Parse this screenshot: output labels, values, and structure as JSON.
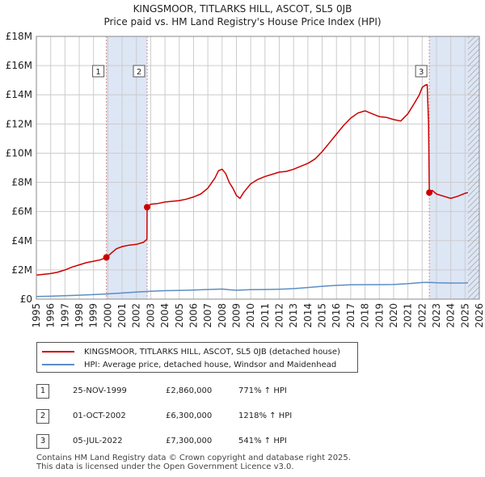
{
  "title_line1": "KINGSMOOR, TITLARKS HILL, ASCOT, SL5 0JB",
  "title_line2": "Price paid vs. HM Land Registry's House Price Index (HPI)",
  "chart_data": {
    "type": "line",
    "xlim": [
      1995,
      2026
    ],
    "ylim": [
      0,
      18000000
    ],
    "y_ticks": [
      0,
      2000000,
      4000000,
      6000000,
      8000000,
      10000000,
      12000000,
      14000000,
      16000000,
      18000000
    ],
    "y_tick_labels": [
      "£0",
      "£2M",
      "£4M",
      "£6M",
      "£8M",
      "£10M",
      "£12M",
      "£14M",
      "£16M",
      "£18M"
    ],
    "x_ticks": [
      1995,
      1996,
      1997,
      1998,
      1999,
      2000,
      2001,
      2002,
      2003,
      2004,
      2005,
      2006,
      2007,
      2008,
      2009,
      2010,
      2011,
      2012,
      2013,
      2014,
      2015,
      2016,
      2017,
      2018,
      2019,
      2020,
      2021,
      2022,
      2023,
      2024,
      2025,
      2026
    ],
    "x_tick_labels": [
      "1995",
      "1996",
      "1997",
      "1998",
      "1999",
      "2000",
      "2001",
      "2002",
      "2003",
      "2004",
      "2005",
      "2006",
      "2007",
      "2008",
      "2009",
      "2010",
      "2011",
      "2012",
      "2013",
      "2014",
      "2015",
      "2016",
      "2017",
      "2018",
      "2019",
      "2020",
      "2021",
      "2022",
      "2023",
      "2024",
      "2025",
      "2026"
    ],
    "grid": true,
    "data_end": 2025.2,
    "shaded_spans": [
      [
        1999.9,
        2002.75
      ],
      [
        2022.5,
        2026
      ]
    ],
    "series": [
      {
        "name": "KINGSMOOR, TITLARKS HILL, ASCOT, SL5 0JB (detached house)",
        "color": "#cc0000",
        "x": [
          1995.0,
          1996.0,
          1996.5,
          1997.0,
          1997.5,
          1998.0,
          1998.5,
          1999.0,
          1999.5,
          1999.9,
          2000.3,
          2000.6,
          2001.0,
          2001.5,
          2002.0,
          2002.5,
          2002.74,
          2002.75,
          2003.0,
          2003.5,
          2004.0,
          2004.5,
          2005.0,
          2005.5,
          2006.0,
          2006.5,
          2007.0,
          2007.5,
          2007.75,
          2008.0,
          2008.25,
          2008.5,
          2008.75,
          2009.0,
          2009.25,
          2009.5,
          2010.0,
          2010.5,
          2011.0,
          2011.5,
          2012.0,
          2012.5,
          2013.0,
          2013.5,
          2014.0,
          2014.5,
          2015.0,
          2015.5,
          2016.0,
          2016.5,
          2017.0,
          2017.5,
          2018.0,
          2018.5,
          2019.0,
          2019.5,
          2020.0,
          2020.5,
          2021.0,
          2021.5,
          2021.8,
          2022.0,
          2022.2,
          2022.35,
          2022.45,
          2022.5,
          2022.7,
          2023.0,
          2023.5,
          2024.0,
          2024.5,
          2025.0,
          2025.2
        ],
        "values": [
          1650000,
          1750000,
          1850000,
          2000000,
          2200000,
          2350000,
          2500000,
          2600000,
          2700000,
          2860000,
          3200000,
          3450000,
          3600000,
          3700000,
          3750000,
          3900000,
          4100000,
          6300000,
          6500000,
          6550000,
          6650000,
          6700000,
          6750000,
          6850000,
          7000000,
          7200000,
          7600000,
          8300000,
          8800000,
          8900000,
          8600000,
          8000000,
          7600000,
          7100000,
          6900000,
          7300000,
          7900000,
          8200000,
          8400000,
          8550000,
          8700000,
          8750000,
          8900000,
          9100000,
          9300000,
          9600000,
          10100000,
          10700000,
          11300000,
          11900000,
          12400000,
          12750000,
          12900000,
          12700000,
          12500000,
          12450000,
          12300000,
          12200000,
          12700000,
          13500000,
          14000000,
          14500000,
          14650000,
          14700000,
          12000000,
          7300000,
          7450000,
          7200000,
          7050000,
          6900000,
          7050000,
          7250000,
          7300000
        ]
      },
      {
        "name": "HPI: Average price, detached house, Windsor and Maidenhead",
        "color": "#5b8ec6",
        "x": [
          1995.0,
          1996.0,
          1997.0,
          1998.0,
          1999.0,
          2000.0,
          2001.0,
          2002.0,
          2003.0,
          2004.0,
          2005.0,
          2006.0,
          2007.0,
          2008.0,
          2008.5,
          2009.0,
          2010.0,
          2011.0,
          2012.0,
          2013.0,
          2014.0,
          2015.0,
          2016.0,
          2017.0,
          2018.0,
          2019.0,
          2020.0,
          2021.0,
          2022.0,
          2022.5,
          2023.0,
          2024.0,
          2025.0,
          2025.2
        ],
        "values": [
          180000,
          200000,
          230000,
          270000,
          310000,
          360000,
          420000,
          480000,
          540000,
          580000,
          600000,
          620000,
          660000,
          690000,
          640000,
          610000,
          650000,
          660000,
          680000,
          720000,
          800000,
          880000,
          940000,
          980000,
          990000,
          990000,
          1000000,
          1060000,
          1140000,
          1150000,
          1120000,
          1100000,
          1110000,
          1120000
        ]
      }
    ],
    "sale_markers": [
      {
        "label": "1",
        "x": 1999.9,
        "y": 2860000
      },
      {
        "label": "2",
        "x": 2002.75,
        "y": 6300000
      },
      {
        "label": "3",
        "x": 2022.5,
        "y": 7300000
      }
    ]
  },
  "legend": {
    "series1": "KINGSMOOR, TITLARKS HILL, ASCOT, SL5 0JB (detached house)",
    "series2": "HPI: Average price, detached house, Windsor and Maidenhead"
  },
  "sales": [
    {
      "num": "1",
      "date": "25-NOV-1999",
      "price": "£2,860,000",
      "hpi": "771% ↑ HPI"
    },
    {
      "num": "2",
      "date": "01-OCT-2002",
      "price": "£6,300,000",
      "hpi": "1218% ↑ HPI"
    },
    {
      "num": "3",
      "date": "05-JUL-2022",
      "price": "£7,300,000",
      "hpi": "541% ↑ HPI"
    }
  ],
  "footer": {
    "line1": "Contains HM Land Registry data © Crown copyright and database right 2025.",
    "line2": "This data is licensed under the Open Government Licence v3.0."
  },
  "colors": {
    "price": "#cc0000",
    "hpi": "#5b8ec6",
    "shade": "#dde6f5",
    "grid": "#cccccc"
  }
}
